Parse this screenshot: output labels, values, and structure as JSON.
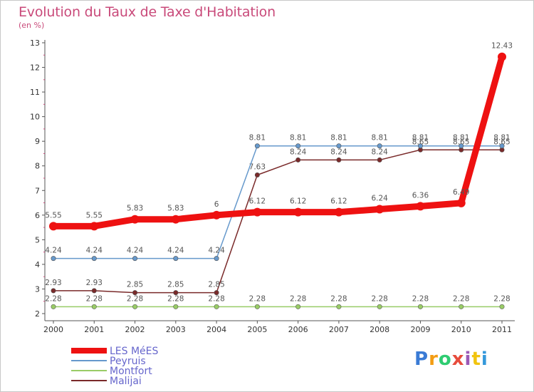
{
  "title": "Evolution du Taux de Taxe d'Habitation",
  "unit_label": "(en %)",
  "logo": {
    "text": "Proxiti",
    "colors": [
      "#3a7bd5",
      "#f39c12",
      "#2ecc71",
      "#e74c3c",
      "#9b59b6",
      "#f1c40f",
      "#3498db"
    ]
  },
  "chart_data": {
    "type": "line",
    "x": [
      "2000",
      "2001",
      "2002",
      "2003",
      "2004",
      "2005",
      "2006",
      "2007",
      "2008",
      "2009",
      "2010",
      "2011"
    ],
    "ylim": [
      2,
      13
    ],
    "yticks": [
      2,
      3,
      4,
      5,
      6,
      7,
      8,
      9,
      10,
      11,
      12,
      13
    ],
    "grid": false,
    "legend_position": "bottom-left",
    "series": [
      {
        "name": "LES MéES",
        "color": "#ee1111",
        "values": [
          5.55,
          5.55,
          5.83,
          5.83,
          6.0,
          6.12,
          6.12,
          6.12,
          6.24,
          6.36,
          6.49,
          12.43
        ],
        "labels": [
          "5.55",
          "5.55",
          "5.83",
          "5.83",
          "6",
          "6.12",
          "6.12",
          "6.12",
          "6.24",
          "6.36",
          "6.49",
          "12.43"
        ]
      },
      {
        "name": "Peyruis",
        "color": "#6699cc",
        "values": [
          4.24,
          4.24,
          4.24,
          4.24,
          4.24,
          8.81,
          8.81,
          8.81,
          8.81,
          8.81,
          8.81,
          8.81
        ],
        "labels": [
          "4.24",
          "4.24",
          "4.24",
          "4.24",
          "4.24",
          "8.81",
          "8.81",
          "8.81",
          "8.81",
          "8.81",
          "8.81",
          "8.81"
        ]
      },
      {
        "name": "Montfort",
        "color": "#99cc66",
        "values": [
          2.28,
          2.28,
          2.28,
          2.28,
          2.28,
          2.28,
          2.28,
          2.28,
          2.28,
          2.28,
          2.28,
          2.28
        ],
        "labels": [
          "2.28",
          "2.28",
          "2.28",
          "2.28",
          "2.28",
          "2.28",
          "2.28",
          "2.28",
          "2.28",
          "2.28",
          "2.28",
          "2.28"
        ]
      },
      {
        "name": "Malijai",
        "color": "#7a2a2a",
        "values": [
          2.93,
          2.93,
          2.85,
          2.85,
          2.85,
          7.63,
          8.24,
          8.24,
          8.24,
          8.65,
          8.65,
          8.65
        ],
        "labels": [
          "2.93",
          "2.93",
          "2.85",
          "2.85",
          "2.85",
          "7.63",
          "8.24",
          "8.24",
          "8.24",
          "8.65",
          "8.65",
          "8.65"
        ]
      }
    ]
  }
}
